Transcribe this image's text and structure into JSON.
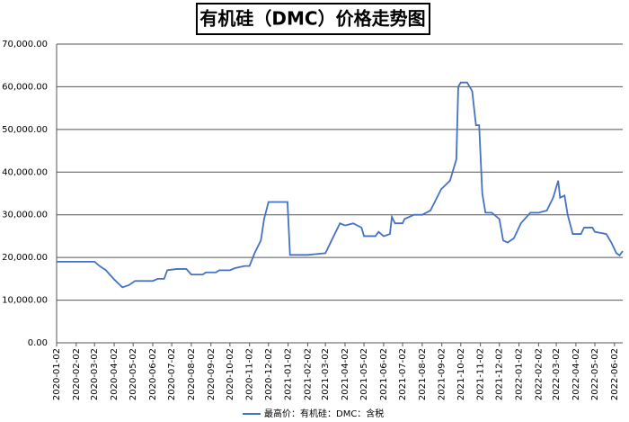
{
  "chart_data": {
    "type": "line",
    "title": "有机硅（DMC）价格走势图",
    "x": [
      "2020-01-02",
      "2020-02-02",
      "2020-03-02",
      "2020-03-10",
      "2020-03-20",
      "2020-04-01",
      "2020-04-15",
      "2020-04-25",
      "2020-05-05",
      "2020-06-02",
      "2020-06-10",
      "2020-06-20",
      "2020-06-25",
      "2020-07-10",
      "2020-07-25",
      "2020-08-02",
      "2020-08-20",
      "2020-08-25",
      "2020-09-10",
      "2020-09-15",
      "2020-10-02",
      "2020-10-10",
      "2020-10-25",
      "2020-11-02",
      "2020-11-10",
      "2020-11-20",
      "2020-11-25",
      "2020-12-02",
      "2021-01-01",
      "2021-01-05",
      "2021-02-02",
      "2021-02-15",
      "2021-03-02",
      "2021-03-15",
      "2021-03-25",
      "2021-04-02",
      "2021-04-15",
      "2021-04-28",
      "2021-05-02",
      "2021-05-20",
      "2021-05-25",
      "2021-06-02",
      "2021-06-12",
      "2021-06-15",
      "2021-06-20",
      "2021-07-02",
      "2021-07-05",
      "2021-07-20",
      "2021-08-02",
      "2021-08-15",
      "2021-09-01",
      "2021-09-15",
      "2021-09-25",
      "2021-09-28",
      "2021-10-02",
      "2021-10-12",
      "2021-10-20",
      "2021-10-26",
      "2021-10-31",
      "2021-11-05",
      "2021-11-10",
      "2021-11-20",
      "2021-12-02",
      "2021-12-08",
      "2021-12-15",
      "2021-12-25",
      "2022-01-05",
      "2022-01-20",
      "2022-02-02",
      "2022-02-15",
      "2022-02-25",
      "2022-03-05",
      "2022-03-08",
      "2022-03-15",
      "2022-03-20",
      "2022-03-28",
      "2022-04-10",
      "2022-04-15",
      "2022-04-28",
      "2022-05-02",
      "2022-05-20",
      "2022-05-28",
      "2022-06-05",
      "2022-06-10",
      "2022-06-15"
    ],
    "series": [
      {
        "name": "最高价：有机硅：DMC：含税",
        "color": "#4472c4",
        "values": [
          19000,
          19000,
          19000,
          18000,
          17000,
          15000,
          13000,
          13500,
          14500,
          14500,
          15000,
          15000,
          17000,
          17300,
          17300,
          16000,
          16000,
          16500,
          16500,
          17000,
          17000,
          17500,
          18000,
          18000,
          21000,
          24000,
          29000,
          33000,
          33000,
          20600,
          20600,
          20800,
          21000,
          25000,
          28000,
          27500,
          28000,
          27000,
          25000,
          25000,
          26000,
          25000,
          25500,
          29500,
          28000,
          28000,
          29000,
          30000,
          30000,
          31000,
          36000,
          38000,
          43000,
          60000,
          61000,
          61000,
          59000,
          51000,
          51000,
          35000,
          30500,
          30500,
          29000,
          24000,
          23500,
          24500,
          28000,
          30500,
          30500,
          31000,
          34000,
          38000,
          34000,
          34500,
          30000,
          25500,
          25500,
          27000,
          27000,
          26000,
          25500,
          23500,
          21000,
          20500,
          21500
        ]
      }
    ],
    "xlim": [
      "2020-01-02",
      "2022-06-15"
    ],
    "xticks": [
      "2020-01-02",
      "2020-02-02",
      "2020-03-02",
      "2020-04-02",
      "2020-05-02",
      "2020-06-02",
      "2020-07-02",
      "2020-08-02",
      "2020-09-02",
      "2020-10-02",
      "2020-11-02",
      "2020-12-02",
      "2021-01-02",
      "2021-02-02",
      "2021-03-02",
      "2021-04-02",
      "2021-05-02",
      "2021-06-02",
      "2021-07-02",
      "2021-08-02",
      "2021-09-02",
      "2021-10-02",
      "2021-11-02",
      "2021-12-02",
      "2022-01-02",
      "2022-02-02",
      "2022-03-02",
      "2022-04-02",
      "2022-05-02",
      "2022-06-02"
    ],
    "ylim": [
      0,
      70000
    ],
    "yticks": [
      {
        "value": 0,
        "label": "0.00"
      },
      {
        "value": 10000,
        "label": "10,000.00"
      },
      {
        "value": 20000,
        "label": "20,000.00"
      },
      {
        "value": 30000,
        "label": "30,000.00"
      },
      {
        "value": 40000,
        "label": "40,000.00"
      },
      {
        "value": 50000,
        "label": "50,000.00"
      },
      {
        "value": 60000,
        "label": "60,000.00"
      },
      {
        "value": 70000,
        "label": "70,000.00"
      }
    ],
    "grid": true
  }
}
